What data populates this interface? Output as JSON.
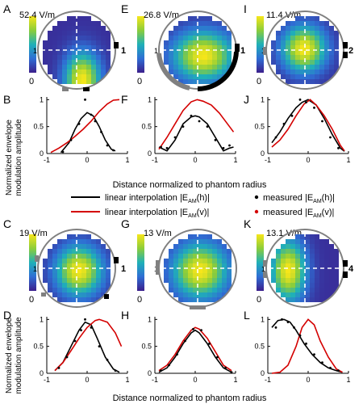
{
  "panel_letters": {
    "A": "A",
    "B": "B",
    "C": "C",
    "D": "D",
    "E": "E",
    "F": "F",
    "G": "G",
    "H": "H",
    "I": "I",
    "J": "J",
    "K": "K",
    "L": "L"
  },
  "maps": [
    {
      "id": "A",
      "max_label": "52.4 V/m",
      "min_label": "0",
      "electrode_label": "1",
      "hot": [
        0.55,
        0.9
      ],
      "spread": [
        0.32,
        0.5
      ]
    },
    {
      "id": "E",
      "max_label": "26.8 V/m",
      "min_label": "0",
      "electrode_label": "1",
      "hot": [
        0.55,
        0.55
      ],
      "spread": [
        0.55,
        0.45
      ]
    },
    {
      "id": "I",
      "max_label": "11.4 V/m",
      "min_label": "0",
      "electrode_label": "2",
      "hot": [
        0.45,
        0.45
      ],
      "spread": [
        0.4,
        0.42
      ]
    },
    {
      "id": "C",
      "max_label": "19 V/m",
      "min_label": "0",
      "electrode_label": "1",
      "hot": [
        0.5,
        0.5
      ],
      "spread": [
        0.42,
        0.45
      ]
    },
    {
      "id": "G",
      "max_label": "13 V/m",
      "min_label": "0",
      "electrode_label": "",
      "hot": [
        0.5,
        0.5
      ],
      "spread": [
        0.5,
        0.5
      ]
    },
    {
      "id": "K",
      "max_label": "13.1 V/m",
      "min_label": "0",
      "electrode_label": "4",
      "hot": [
        0.22,
        0.5
      ],
      "spread": [
        0.32,
        0.55
      ]
    }
  ],
  "map_axis_label_one": "1",
  "colors": {
    "black_line": "#000000",
    "red_line": "#d40000",
    "ring": "#808080",
    "crosshair": "#ffffff"
  },
  "shared_xlabel": "Distance normalized to phantom radius",
  "shared_ylabel_line1": "Normalized envelope",
  "shared_ylabel_line2": "modulation amplitude",
  "legend": {
    "black_line_label": "linear interpolation  |E",
    "black_line_sub": "AM",
    "black_line_tail": "(h)|",
    "red_line_label": "linear interpolation  |E",
    "red_line_sub": "AM",
    "red_line_tail": "(v)|",
    "black_dot_label": "measured |E",
    "black_dot_sub": "AM",
    "black_dot_tail": "(h)|",
    "red_dot_label": "measured |E",
    "red_dot_sub": "AM",
    "red_dot_tail": "(v)|"
  },
  "chart_data": [
    {
      "id": "B",
      "type": "line",
      "xlim": [
        -1,
        1
      ],
      "ylim": [
        0,
        1.05
      ],
      "xticks": [
        "-1",
        "0",
        "1"
      ],
      "yticks": [
        "0",
        "0.5",
        "1"
      ],
      "series": [
        {
          "color": "#000000",
          "x": [
            -0.65,
            -0.45,
            -0.3,
            -0.15,
            0,
            0.15,
            0.3,
            0.45,
            0.6,
            0.7
          ],
          "y": [
            0.02,
            0.2,
            0.45,
            0.65,
            0.76,
            0.7,
            0.5,
            0.25,
            0.08,
            0.05
          ]
        },
        {
          "color": "#d40000",
          "x": [
            -0.9,
            -0.7,
            -0.5,
            -0.3,
            -0.1,
            0.1,
            0.3,
            0.5,
            0.65,
            0.8
          ],
          "y": [
            0.02,
            0.1,
            0.2,
            0.32,
            0.45,
            0.6,
            0.78,
            0.92,
            0.99,
            1.0
          ]
        }
      ],
      "points": [
        {
          "x": -0.6,
          "y": 0.03
        },
        {
          "x": -0.4,
          "y": 0.25
        },
        {
          "x": -0.2,
          "y": 0.55
        },
        {
          "x": -0.05,
          "y": 1.0
        },
        {
          "x": 0.1,
          "y": 0.72
        },
        {
          "x": 0.2,
          "y": 0.6
        },
        {
          "x": 0.35,
          "y": 0.4
        },
        {
          "x": 0.5,
          "y": 0.15
        },
        {
          "x": 0.65,
          "y": 0.06
        }
      ]
    },
    {
      "id": "F",
      "type": "line",
      "xlim": [
        -1,
        1
      ],
      "ylim": [
        0,
        1.05
      ],
      "xticks": [
        "-1",
        "0",
        "1"
      ],
      "yticks": [
        "0",
        "0.5",
        "1"
      ],
      "series": [
        {
          "color": "#000000",
          "x": [
            -0.9,
            -0.7,
            -0.5,
            -0.3,
            -0.1,
            0,
            0.1,
            0.3,
            0.5,
            0.7,
            0.85,
            0.95
          ],
          "y": [
            0.12,
            0.05,
            0.25,
            0.55,
            0.68,
            0.7,
            0.68,
            0.55,
            0.3,
            0.05,
            0.1,
            0.12
          ]
        },
        {
          "color": "#d40000",
          "x": [
            -0.9,
            -0.7,
            -0.5,
            -0.3,
            -0.1,
            0.05,
            0.2,
            0.4,
            0.6,
            0.8,
            0.95
          ],
          "y": [
            0.08,
            0.3,
            0.55,
            0.8,
            0.96,
            1.0,
            0.97,
            0.9,
            0.75,
            0.55,
            0.4
          ]
        }
      ],
      "points": [
        {
          "x": -0.85,
          "y": 0.12
        },
        {
          "x": -0.7,
          "y": 0.1
        },
        {
          "x": -0.5,
          "y": 0.3
        },
        {
          "x": -0.3,
          "y": 0.5
        },
        {
          "x": -0.1,
          "y": 0.7
        },
        {
          "x": 0.1,
          "y": 0.6
        },
        {
          "x": 0.3,
          "y": 0.5
        },
        {
          "x": 0.5,
          "y": 0.25
        },
        {
          "x": 0.7,
          "y": 0.1
        },
        {
          "x": 0.85,
          "y": 0.15
        }
      ]
    },
    {
      "id": "J",
      "type": "line",
      "xlim": [
        -1,
        1
      ],
      "ylim": [
        0,
        1.05
      ],
      "xticks": [
        "-1",
        "0",
        "1"
      ],
      "yticks": [
        "0",
        "0.5",
        "1"
      ],
      "series": [
        {
          "color": "#000000",
          "x": [
            -0.9,
            -0.7,
            -0.5,
            -0.3,
            -0.15,
            0,
            0.2,
            0.4,
            0.6,
            0.8,
            0.9
          ],
          "y": [
            0.2,
            0.4,
            0.65,
            0.85,
            0.95,
            1.0,
            0.9,
            0.65,
            0.35,
            0.1,
            0.04
          ]
        },
        {
          "color": "#d40000",
          "x": [
            -0.9,
            -0.7,
            -0.5,
            -0.3,
            -0.1,
            0.05,
            0.2,
            0.4,
            0.6,
            0.8,
            0.9
          ],
          "y": [
            0.12,
            0.25,
            0.45,
            0.7,
            0.92,
            1.0,
            0.9,
            0.7,
            0.45,
            0.15,
            0.05
          ]
        }
      ],
      "points": [
        {
          "x": -0.8,
          "y": 0.3
        },
        {
          "x": -0.6,
          "y": 0.55
        },
        {
          "x": -0.4,
          "y": 0.7
        },
        {
          "x": -0.2,
          "y": 1.0
        },
        {
          "x": -0.05,
          "y": 0.95
        },
        {
          "x": 0.15,
          "y": 0.85
        },
        {
          "x": 0.35,
          "y": 0.6
        },
        {
          "x": 0.55,
          "y": 0.3
        },
        {
          "x": 0.75,
          "y": 0.1
        }
      ]
    },
    {
      "id": "D",
      "type": "line",
      "xlim": [
        -1,
        1
      ],
      "ylim": [
        0,
        1.05
      ],
      "xticks": [
        "-1",
        "0",
        "1"
      ],
      "yticks": [
        "0",
        "0.5",
        "1"
      ],
      "series": [
        {
          "color": "#000000",
          "x": [
            -0.8,
            -0.6,
            -0.4,
            -0.2,
            -0.05,
            0.1,
            0.25,
            0.45,
            0.65,
            0.8
          ],
          "y": [
            0.05,
            0.2,
            0.5,
            0.8,
            0.95,
            0.9,
            0.65,
            0.3,
            0.08,
            0.02
          ]
        },
        {
          "color": "#d40000",
          "x": [
            -0.8,
            -0.6,
            -0.4,
            -0.2,
            0,
            0.2,
            0.3,
            0.5,
            0.7,
            0.85
          ],
          "y": [
            0.05,
            0.2,
            0.42,
            0.65,
            0.85,
            0.98,
            1.0,
            0.95,
            0.75,
            0.5
          ]
        }
      ],
      "points": [
        {
          "x": -0.7,
          "y": 0.1
        },
        {
          "x": -0.5,
          "y": 0.3
        },
        {
          "x": -0.3,
          "y": 0.6
        },
        {
          "x": -0.15,
          "y": 0.8
        },
        {
          "x": -0.05,
          "y": 1.0
        },
        {
          "x": 0.1,
          "y": 0.85
        },
        {
          "x": 0.3,
          "y": 0.5
        },
        {
          "x": 0.5,
          "y": 0.25
        },
        {
          "x": 0.7,
          "y": 0.05
        }
      ]
    },
    {
      "id": "H",
      "type": "line",
      "xlim": [
        -1,
        1
      ],
      "ylim": [
        0,
        1.05
      ],
      "xticks": [
        "-1",
        "0",
        "1"
      ],
      "yticks": [
        "0",
        "0.5",
        "1"
      ],
      "series": [
        {
          "color": "#000000",
          "x": [
            -0.9,
            -0.7,
            -0.5,
            -0.3,
            -0.1,
            0,
            0.1,
            0.3,
            0.5,
            0.7,
            0.9
          ],
          "y": [
            0.02,
            0.1,
            0.3,
            0.55,
            0.75,
            0.8,
            0.75,
            0.55,
            0.3,
            0.1,
            0.02
          ]
        },
        {
          "color": "#d40000",
          "x": [
            -0.9,
            -0.7,
            -0.5,
            -0.3,
            -0.1,
            0,
            0.1,
            0.3,
            0.5,
            0.7,
            0.9
          ],
          "y": [
            0.05,
            0.15,
            0.35,
            0.6,
            0.8,
            0.85,
            0.82,
            0.65,
            0.4,
            0.15,
            0.05
          ]
        }
      ],
      "points": [
        {
          "x": -0.85,
          "y": 0.05
        },
        {
          "x": -0.65,
          "y": 0.15
        },
        {
          "x": -0.45,
          "y": 0.35
        },
        {
          "x": -0.25,
          "y": 0.6
        },
        {
          "x": -0.05,
          "y": 0.82
        },
        {
          "x": 0.15,
          "y": 0.8
        },
        {
          "x": 0.35,
          "y": 0.55
        },
        {
          "x": 0.55,
          "y": 0.3
        },
        {
          "x": 0.75,
          "y": 0.1
        },
        {
          "x": 0.9,
          "y": 0.02
        }
      ]
    },
    {
      "id": "L",
      "type": "line",
      "xlim": [
        -1,
        1
      ],
      "ylim": [
        0,
        1.05
      ],
      "xticks": [
        "-1",
        "0",
        "1"
      ],
      "yticks": [
        "0",
        "0.5",
        "1"
      ],
      "series": [
        {
          "color": "#000000",
          "x": [
            -0.9,
            -0.75,
            -0.6,
            -0.45,
            -0.3,
            -0.1,
            0.1,
            0.3,
            0.5,
            0.7,
            0.85
          ],
          "y": [
            0.85,
            0.98,
            1.0,
            0.95,
            0.8,
            0.55,
            0.35,
            0.2,
            0.1,
            0.05,
            0.02
          ]
        },
        {
          "color": "#d40000",
          "x": [
            -0.9,
            -0.7,
            -0.5,
            -0.3,
            -0.15,
            0,
            0.15,
            0.3,
            0.5,
            0.7,
            0.85
          ],
          "y": [
            0.0,
            0.02,
            0.15,
            0.5,
            0.85,
            1.0,
            0.9,
            0.6,
            0.3,
            0.08,
            0.02
          ]
        }
      ],
      "points": [
        {
          "x": -0.8,
          "y": 0.85
        },
        {
          "x": -0.65,
          "y": 1.0
        },
        {
          "x": -0.5,
          "y": 0.95
        },
        {
          "x": -0.35,
          "y": 0.85
        },
        {
          "x": -0.2,
          "y": 0.7
        },
        {
          "x": -0.05,
          "y": 0.55
        },
        {
          "x": 0.15,
          "y": 0.35
        },
        {
          "x": 0.35,
          "y": 0.2
        },
        {
          "x": 0.55,
          "y": 0.1
        },
        {
          "x": 0.75,
          "y": 0.05
        }
      ]
    }
  ]
}
